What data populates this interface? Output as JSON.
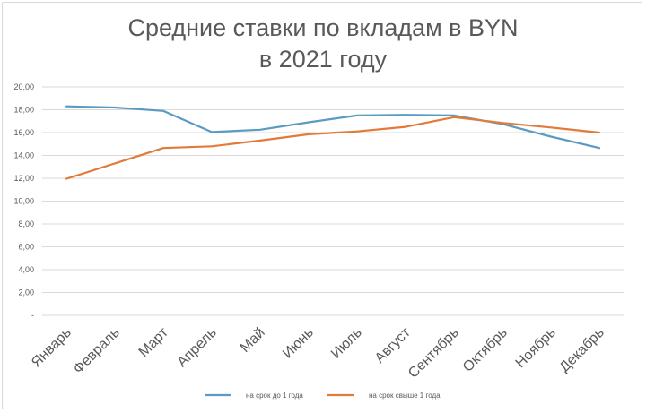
{
  "chart_data": {
    "type": "line",
    "title_lines": [
      "Средние ставки по вкладам в BYN",
      "в 2021 году"
    ],
    "categories": [
      "Январь",
      "Февраль",
      "Март",
      "Апрель",
      "Май",
      "Июнь",
      "Июль",
      "Август",
      "Сентябрь",
      "Октябрь",
      "Ноябрь",
      "Декабрь"
    ],
    "series": [
      {
        "name": "на срок до 1 года",
        "color": "#5b9bc1",
        "values": [
          18.3,
          18.2,
          17.9,
          16.05,
          16.25,
          16.9,
          17.5,
          17.55,
          17.5,
          16.75,
          15.65,
          14.65
        ]
      },
      {
        "name": "на срок свыше 1 года",
        "color": "#e07b39",
        "values": [
          11.95,
          13.3,
          14.65,
          14.8,
          15.3,
          15.85,
          16.1,
          16.5,
          17.35,
          16.85,
          16.45,
          16.0
        ]
      }
    ],
    "ylim": [
      0,
      20
    ],
    "yticks": [
      "-",
      "2,00",
      "4,00",
      "6,00",
      "8,00",
      "10,00",
      "12,00",
      "14,00",
      "16,00",
      "18,00",
      "20,00"
    ],
    "grid": true,
    "legend_position": "bottom"
  }
}
